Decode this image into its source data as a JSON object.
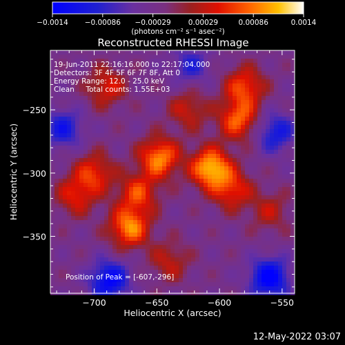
{
  "chart_data": {
    "type": "heatmap",
    "title": "Reconstructed RHESSI Image",
    "xlabel": "Heliocentric X (arcsec)",
    "ylabel": "Heliocentric Y (arcsec)",
    "xlim": [
      -735,
      -540
    ],
    "ylim": [
      -395,
      -203
    ],
    "x_ticks": [
      -700,
      -650,
      -600,
      -550
    ],
    "y_ticks": [
      -250,
      -300,
      -350
    ],
    "x_tick_labels": [
      "−700",
      "−650",
      "−600",
      "−550"
    ],
    "y_tick_labels": [
      "−250",
      "−300",
      "−350"
    ],
    "colorbar": {
      "range": [
        -0.0014,
        0.0014
      ],
      "tick_labels": [
        "−0.0014",
        "−0.00086",
        "−0.00029",
        "0.00029",
        "0.00086",
        "0.0014"
      ],
      "unit_label": "(photons cm⁻² s⁻¹ asec⁻²)"
    },
    "info_lines": [
      "19-Jun-2011 22:16:16.000 to 22:17:04.000",
      "Detectors: 3F 4F 5F 6F 7F 8F, Att 0",
      "Energy Range: 12.0 - 25.0 keV",
      "Clean     Total counts: 1.55E+03"
    ],
    "peak_label": "Position of Peak = [-607,-296]",
    "sources": [
      {
        "x": -607,
        "y": -296,
        "amplitude": 0.0014
      },
      {
        "x": -648,
        "y": -288,
        "amplitude": 0.00118
      },
      {
        "x": -672,
        "y": -343,
        "amplitude": 0.00118
      },
      {
        "x": -665,
        "y": -316,
        "amplitude": 0.00085
      },
      {
        "x": -585,
        "y": -258,
        "amplitude": 0.001
      },
      {
        "x": -580,
        "y": -232,
        "amplitude": 0.0009
      },
      {
        "x": -590,
        "y": -313,
        "amplitude": 0.0008
      },
      {
        "x": -700,
        "y": -300,
        "amplitude": 0.0008
      },
      {
        "x": -715,
        "y": -318,
        "amplitude": 0.0007
      },
      {
        "x": -690,
        "y": -232,
        "amplitude": 0.0007
      },
      {
        "x": -625,
        "y": -250,
        "amplitude": 0.0006
      },
      {
        "x": -640,
        "y": -370,
        "amplitude": 0.00055
      },
      {
        "x": -560,
        "y": -330,
        "amplitude": 0.0005
      }
    ],
    "minimum_regions": [
      {
        "x": -688,
        "y": -385,
        "amplitude": -0.0011
      },
      {
        "x": -560,
        "y": -383,
        "amplitude": -0.0012
      },
      {
        "x": -725,
        "y": -265,
        "amplitude": -0.0008
      },
      {
        "x": -555,
        "y": -268,
        "amplitude": -0.0008
      },
      {
        "x": -623,
        "y": -215,
        "amplitude": -0.0006
      }
    ]
  },
  "footer_timestamp": "12-May-2022 03:07"
}
